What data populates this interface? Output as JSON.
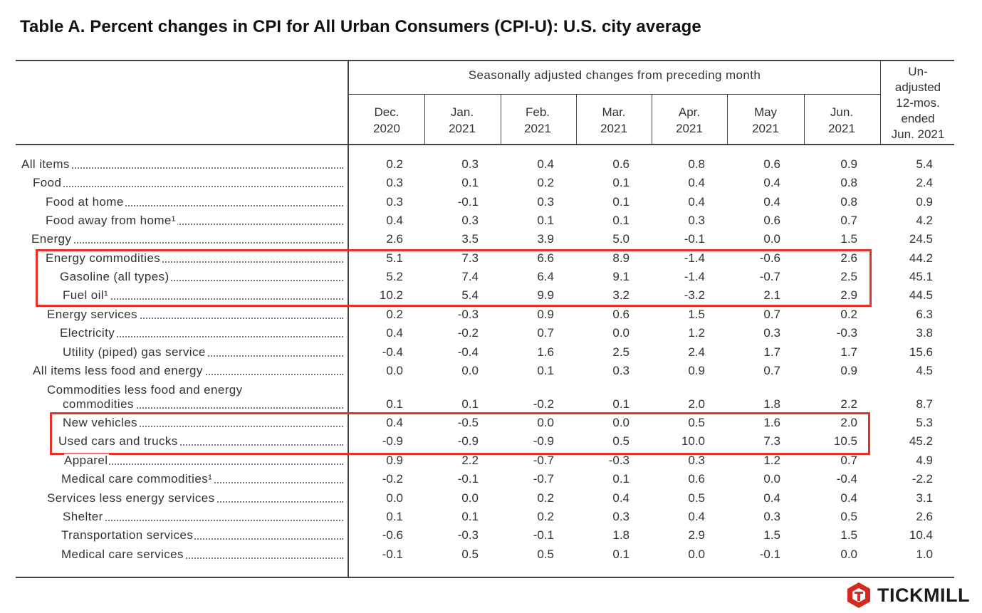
{
  "title": "Table A. Percent changes in CPI for All Urban Consumers (CPI-U): U.S. city average",
  "header": {
    "group_label": "Seasonally adjusted changes from preceding month",
    "columns": [
      {
        "line1": "Dec.",
        "line2": "2020"
      },
      {
        "line1": "Jan.",
        "line2": "2021"
      },
      {
        "line1": "Feb.",
        "line2": "2021"
      },
      {
        "line1": "Mar.",
        "line2": "2021"
      },
      {
        "line1": "Apr.",
        "line2": "2021"
      },
      {
        "line1": "May",
        "line2": "2021"
      },
      {
        "line1": "Jun.",
        "line2": "2021"
      }
    ],
    "unadjusted": {
      "line1": "Un-",
      "line2": "adjusted",
      "line3": "12-mos.",
      "line4": "ended",
      "line5": "Jun. 2021"
    }
  },
  "rows": [
    {
      "label": "All items",
      "values": [
        "0.2",
        "0.3",
        "0.4",
        "0.6",
        "0.8",
        "0.6",
        "0.9",
        "5.4"
      ]
    },
    {
      "label": "Food",
      "values": [
        "0.3",
        "0.1",
        "0.2",
        "0.1",
        "0.4",
        "0.4",
        "0.8",
        "2.4"
      ]
    },
    {
      "label": "Food at home",
      "values": [
        "0.3",
        "-0.1",
        "0.3",
        "0.1",
        "0.4",
        "0.4",
        "0.8",
        "0.9"
      ]
    },
    {
      "label": "Food away from home¹",
      "values": [
        "0.4",
        "0.3",
        "0.1",
        "0.1",
        "0.3",
        "0.6",
        "0.7",
        "4.2"
      ]
    },
    {
      "label": "Energy",
      "values": [
        "2.6",
        "3.5",
        "3.9",
        "5.0",
        "-0.1",
        "0.0",
        "1.5",
        "24.5"
      ]
    },
    {
      "label": "Energy commodities",
      "values": [
        "5.1",
        "7.3",
        "6.6",
        "8.9",
        "-1.4",
        "-0.6",
        "2.6",
        "44.2"
      ]
    },
    {
      "label": "Gasoline (all types)",
      "values": [
        "5.2",
        "7.4",
        "6.4",
        "9.1",
        "-1.4",
        "-0.7",
        "2.5",
        "45.1"
      ]
    },
    {
      "label": "Fuel oil¹",
      "values": [
        "10.2",
        "5.4",
        "9.9",
        "3.2",
        "-3.2",
        "2.1",
        "2.9",
        "44.5"
      ]
    },
    {
      "label": "Energy services",
      "values": [
        "0.2",
        "-0.3",
        "0.9",
        "0.6",
        "1.5",
        "0.7",
        "0.2",
        "6.3"
      ]
    },
    {
      "label": "Electricity",
      "values": [
        "0.4",
        "-0.2",
        "0.7",
        "0.0",
        "1.2",
        "0.3",
        "-0.3",
        "3.8"
      ]
    },
    {
      "label": "Utility (piped) gas service",
      "values": [
        "-0.4",
        "-0.4",
        "1.6",
        "2.5",
        "2.4",
        "1.7",
        "1.7",
        "15.6"
      ]
    },
    {
      "label": "All items less food and energy",
      "values": [
        "0.0",
        "0.0",
        "0.1",
        "0.3",
        "0.9",
        "0.7",
        "0.9",
        "4.5"
      ]
    },
    {
      "label": "Commodities less food and energy",
      "label2": "commodities",
      "values": [
        "0.1",
        "0.1",
        "-0.2",
        "0.1",
        "2.0",
        "1.8",
        "2.2",
        "8.7"
      ]
    },
    {
      "label": "New vehicles",
      "values": [
        "0.4",
        "-0.5",
        "0.0",
        "0.0",
        "0.5",
        "1.6",
        "2.0",
        "5.3"
      ]
    },
    {
      "label": "Used cars and trucks",
      "values": [
        "-0.9",
        "-0.9",
        "-0.9",
        "0.5",
        "10.0",
        "7.3",
        "10.5",
        "45.2"
      ]
    },
    {
      "label": "Apparel",
      "values": [
        "0.9",
        "2.2",
        "-0.7",
        "-0.3",
        "0.3",
        "1.2",
        "0.7",
        "4.9"
      ]
    },
    {
      "label": "Medical care commodities¹",
      "values": [
        "-0.2",
        "-0.1",
        "-0.7",
        "0.1",
        "0.6",
        "0.0",
        "-0.4",
        "-2.2"
      ]
    },
    {
      "label": "Services less energy services",
      "values": [
        "0.0",
        "0.0",
        "0.2",
        "0.4",
        "0.5",
        "0.4",
        "0.4",
        "3.1"
      ]
    },
    {
      "label": "Shelter",
      "values": [
        "0.1",
        "0.1",
        "0.2",
        "0.3",
        "0.4",
        "0.3",
        "0.5",
        "2.6"
      ]
    },
    {
      "label": "Transportation services",
      "values": [
        "-0.6",
        "-0.3",
        "-0.1",
        "1.8",
        "2.9",
        "1.5",
        "1.5",
        "10.4"
      ]
    },
    {
      "label": "Medical care services",
      "values": [
        "-0.1",
        "0.5",
        "0.5",
        "0.1",
        "0.0",
        "-0.1",
        "0.0",
        "1.0"
      ]
    }
  ],
  "highlight_color": "#e8302a",
  "logo": {
    "text": "TICKMILL",
    "icon": "tickmill-logo-icon",
    "color": "#d42a20"
  }
}
